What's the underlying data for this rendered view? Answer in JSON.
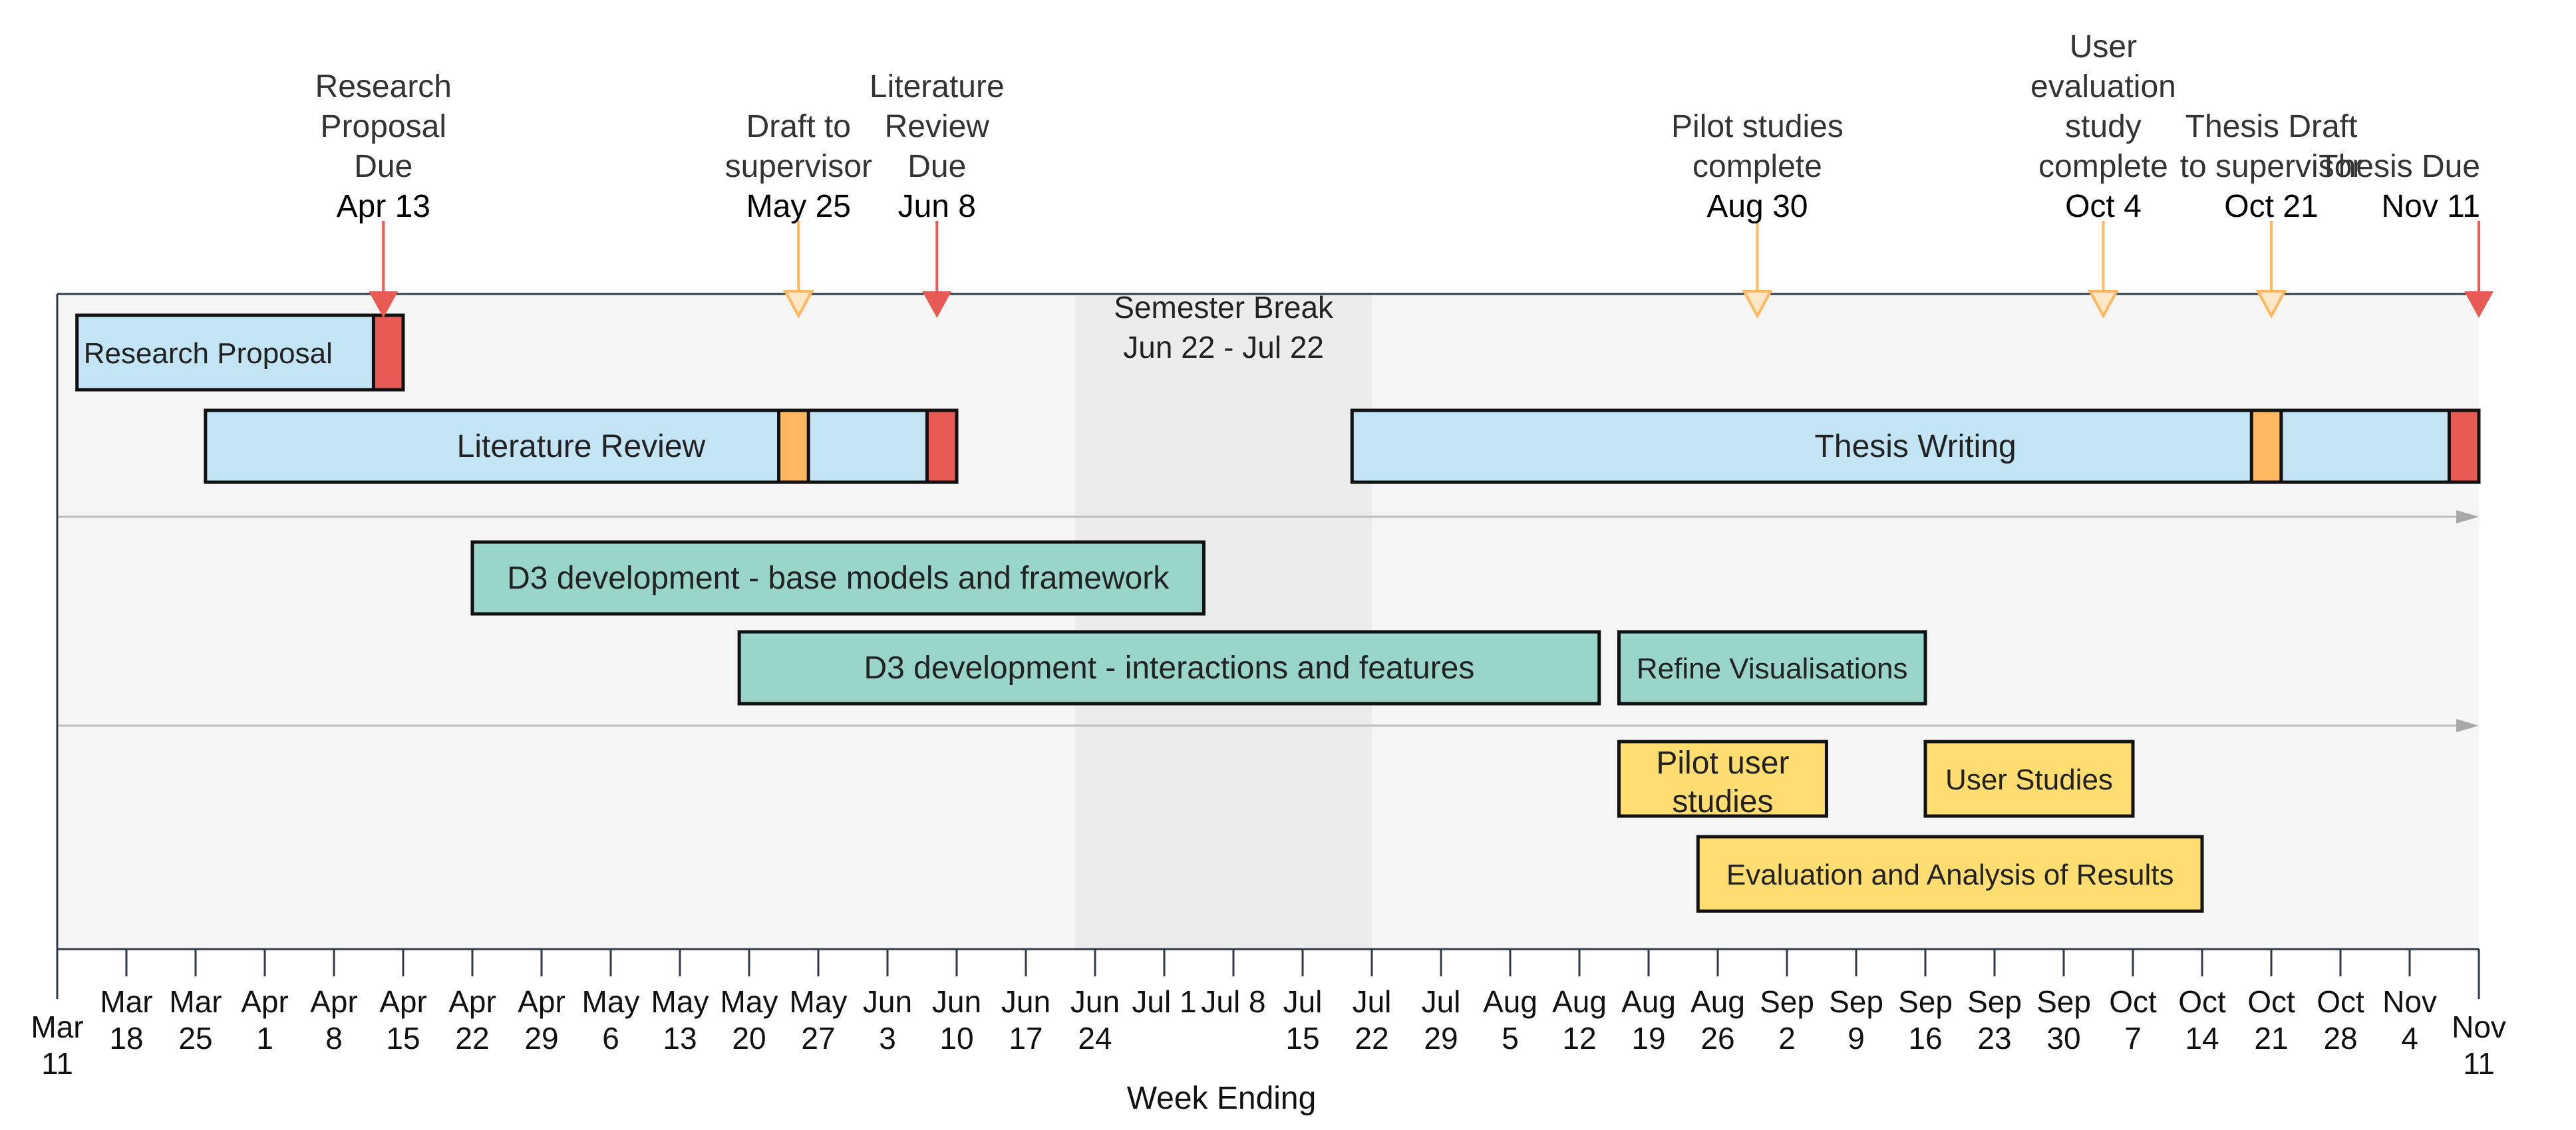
{
  "chart_data": {
    "type": "gantt",
    "xlabel": "Week Ending",
    "x_range": [
      "2019-03-11",
      "2019-11-11"
    ],
    "ticks": [
      {
        "date": "2019-03-11",
        "lines": [
          "Mar",
          "11"
        ]
      },
      {
        "date": "2019-03-18",
        "lines": [
          "Mar",
          "18"
        ]
      },
      {
        "date": "2019-03-25",
        "lines": [
          "Mar",
          "25"
        ]
      },
      {
        "date": "2019-04-01",
        "lines": [
          "Apr",
          "1"
        ]
      },
      {
        "date": "2019-04-08",
        "lines": [
          "Apr",
          "8"
        ]
      },
      {
        "date": "2019-04-15",
        "lines": [
          "Apr",
          "15"
        ]
      },
      {
        "date": "2019-04-22",
        "lines": [
          "Apr",
          "22"
        ]
      },
      {
        "date": "2019-04-29",
        "lines": [
          "Apr",
          "29"
        ]
      },
      {
        "date": "2019-05-06",
        "lines": [
          "May",
          "6"
        ]
      },
      {
        "date": "2019-05-13",
        "lines": [
          "May",
          "13"
        ]
      },
      {
        "date": "2019-05-20",
        "lines": [
          "May",
          "20"
        ]
      },
      {
        "date": "2019-05-27",
        "lines": [
          "May",
          "27"
        ]
      },
      {
        "date": "2019-06-03",
        "lines": [
          "Jun",
          "3"
        ]
      },
      {
        "date": "2019-06-10",
        "lines": [
          "Jun",
          "10"
        ]
      },
      {
        "date": "2019-06-17",
        "lines": [
          "Jun",
          "17"
        ]
      },
      {
        "date": "2019-06-24",
        "lines": [
          "Jun",
          "24"
        ]
      },
      {
        "date": "2019-07-01",
        "lines": [
          "Jul 1",
          ""
        ]
      },
      {
        "date": "2019-07-08",
        "lines": [
          "Jul 8",
          ""
        ]
      },
      {
        "date": "2019-07-15",
        "lines": [
          "Jul",
          "15"
        ]
      },
      {
        "date": "2019-07-22",
        "lines": [
          "Jul",
          "22"
        ]
      },
      {
        "date": "2019-07-29",
        "lines": [
          "Jul",
          "29"
        ]
      },
      {
        "date": "2019-08-05",
        "lines": [
          "Aug",
          "5"
        ]
      },
      {
        "date": "2019-08-12",
        "lines": [
          "Aug",
          "12"
        ]
      },
      {
        "date": "2019-08-19",
        "lines": [
          "Aug",
          "19"
        ]
      },
      {
        "date": "2019-08-26",
        "lines": [
          "Aug",
          "26"
        ]
      },
      {
        "date": "2019-09-02",
        "lines": [
          "Sep",
          "2"
        ]
      },
      {
        "date": "2019-09-09",
        "lines": [
          "Sep",
          "9"
        ]
      },
      {
        "date": "2019-09-16",
        "lines": [
          "Sep",
          "16"
        ]
      },
      {
        "date": "2019-09-23",
        "lines": [
          "Sep",
          "23"
        ]
      },
      {
        "date": "2019-09-30",
        "lines": [
          "Sep",
          "30"
        ]
      },
      {
        "date": "2019-10-07",
        "lines": [
          "Oct",
          "7"
        ]
      },
      {
        "date": "2019-10-14",
        "lines": [
          "Oct",
          "14"
        ]
      },
      {
        "date": "2019-10-21",
        "lines": [
          "Oct",
          "21"
        ]
      },
      {
        "date": "2019-10-28",
        "lines": [
          "Oct",
          "28"
        ]
      },
      {
        "date": "2019-11-04",
        "lines": [
          "Nov",
          "4"
        ]
      },
      {
        "date": "2019-11-11",
        "lines": [
          "Nov",
          "11"
        ]
      }
    ],
    "semester_break": {
      "lines": [
        "Semester Break",
        "Jun 22 - Jul 22"
      ],
      "start": "2019-06-22",
      "end": "2019-07-22",
      "color": "#ececec"
    },
    "milestones": [
      {
        "label_lines": [
          "Research",
          "Proposal",
          "Due"
        ],
        "date_label": "Apr 13",
        "date": "2019-04-13",
        "kind": "deadline"
      },
      {
        "label_lines": [
          "Draft to",
          "supervisor"
        ],
        "date_label": "May 25",
        "date": "2019-05-25",
        "kind": "review"
      },
      {
        "label_lines": [
          "Literature",
          "Review",
          "Due"
        ],
        "date_label": "Jun 8",
        "date": "2019-06-08",
        "kind": "deadline"
      },
      {
        "label_lines": [
          "Pilot studies",
          "complete"
        ],
        "date_label": "Aug 30",
        "date": "2019-08-30",
        "kind": "review"
      },
      {
        "label_lines": [
          "User",
          "evaluation",
          "study",
          "complete"
        ],
        "date_label": "Oct 4",
        "date": "2019-10-04",
        "kind": "review"
      },
      {
        "label_lines": [
          "Thesis Draft",
          "to supervisor"
        ],
        "date_label": "Oct 21",
        "date": "2019-10-21",
        "kind": "review"
      },
      {
        "label_lines": [
          "Thesis Due"
        ],
        "date_label": "Nov 11",
        "date": "2019-11-11",
        "kind": "deadline"
      }
    ],
    "tasks": [
      {
        "label": "Research Proposal",
        "start": "2019-03-13",
        "end": "2019-04-15",
        "row": 0,
        "category": "writing",
        "markers": [
          {
            "start": "2019-04-12",
            "end": "2019-04-15",
            "kind": "deadline"
          }
        ]
      },
      {
        "label": "Literature Review",
        "start": "2019-03-26",
        "end": "2019-06-10",
        "row": 1,
        "category": "writing",
        "markers": [
          {
            "start": "2019-05-23",
            "end": "2019-05-26",
            "kind": "review"
          },
          {
            "start": "2019-06-07",
            "end": "2019-06-10",
            "kind": "deadline"
          }
        ]
      },
      {
        "label": "Thesis Writing",
        "start": "2019-07-20",
        "end": "2019-11-11",
        "row": 1,
        "category": "writing",
        "markers": [
          {
            "start": "2019-10-19",
            "end": "2019-10-22",
            "kind": "review"
          },
          {
            "start": "2019-11-08",
            "end": "2019-11-11",
            "kind": "deadline"
          }
        ]
      },
      {
        "label": "D3  development - base models and  framework",
        "start": "2019-04-22",
        "end": "2019-07-05",
        "row": 2,
        "category": "development",
        "markers": []
      },
      {
        "label": "D3  development - interactions and features",
        "start": "2019-05-19",
        "end": "2019-08-14",
        "row": 3,
        "category": "development",
        "markers": []
      },
      {
        "label": "Refine Visualisations",
        "start": "2019-08-16",
        "end": "2019-09-16",
        "row": 3,
        "category": "development",
        "markers": []
      },
      {
        "label": "Pilot user studies",
        "start": "2019-08-16",
        "end": "2019-09-06",
        "row": 4,
        "category": "evaluation",
        "markers": []
      },
      {
        "label": "User Studies",
        "start": "2019-09-16",
        "end": "2019-10-07",
        "row": 4,
        "category": "evaluation",
        "markers": []
      },
      {
        "label": "Evaluation and Analysis of Results",
        "start": "2019-08-24",
        "end": "2019-10-14",
        "row": 5,
        "category": "evaluation",
        "markers": []
      }
    ],
    "colors": {
      "writing": "#c2e4f5",
      "development": "#99d5c9",
      "evaluation": "#ffdd70",
      "deadline": "#e85b55",
      "review": "#ffb760",
      "plot_bg": "#f5f5f5",
      "separator": "#bdbdbd"
    },
    "grid": false
  }
}
